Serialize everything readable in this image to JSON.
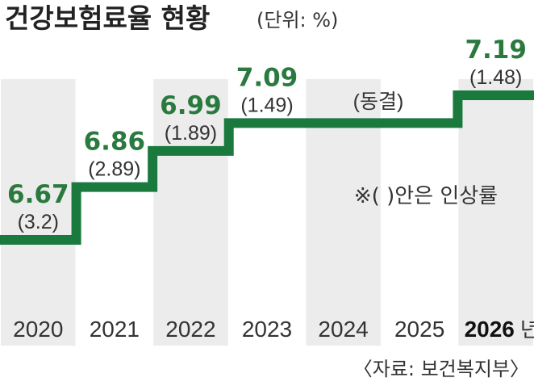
{
  "header": {
    "title": "건강보험료율 현황",
    "unit": "(단위: %)"
  },
  "chart_data": {
    "type": "line",
    "step": true,
    "x": [
      "2020",
      "2021",
      "2022",
      "2023",
      "2024",
      "2025",
      "2026"
    ],
    "values": [
      6.67,
      6.86,
      6.99,
      7.09,
      7.09,
      7.09,
      7.19
    ],
    "value_labels": [
      "6.67",
      "6.86",
      "6.99",
      "7.09",
      "",
      "",
      "7.19"
    ],
    "change_labels": [
      "(3.2)",
      "(2.89)",
      "(1.89)",
      "(1.49)",
      "",
      "",
      "(1.48)"
    ],
    "x_tick_labels": [
      "2020",
      "2021",
      "2022",
      "2023",
      "2024",
      "2025",
      "2026"
    ],
    "last_year_suffix": "년",
    "freeze_label": "(동결)",
    "note": "※(    )안은 인상률",
    "line_color": "#1a7a3e",
    "value_color": "#2a7a3f",
    "column_shade": "#ececec",
    "ylim": [
      6.5,
      7.25
    ]
  },
  "source": "〈자료: 보건복지부〉"
}
